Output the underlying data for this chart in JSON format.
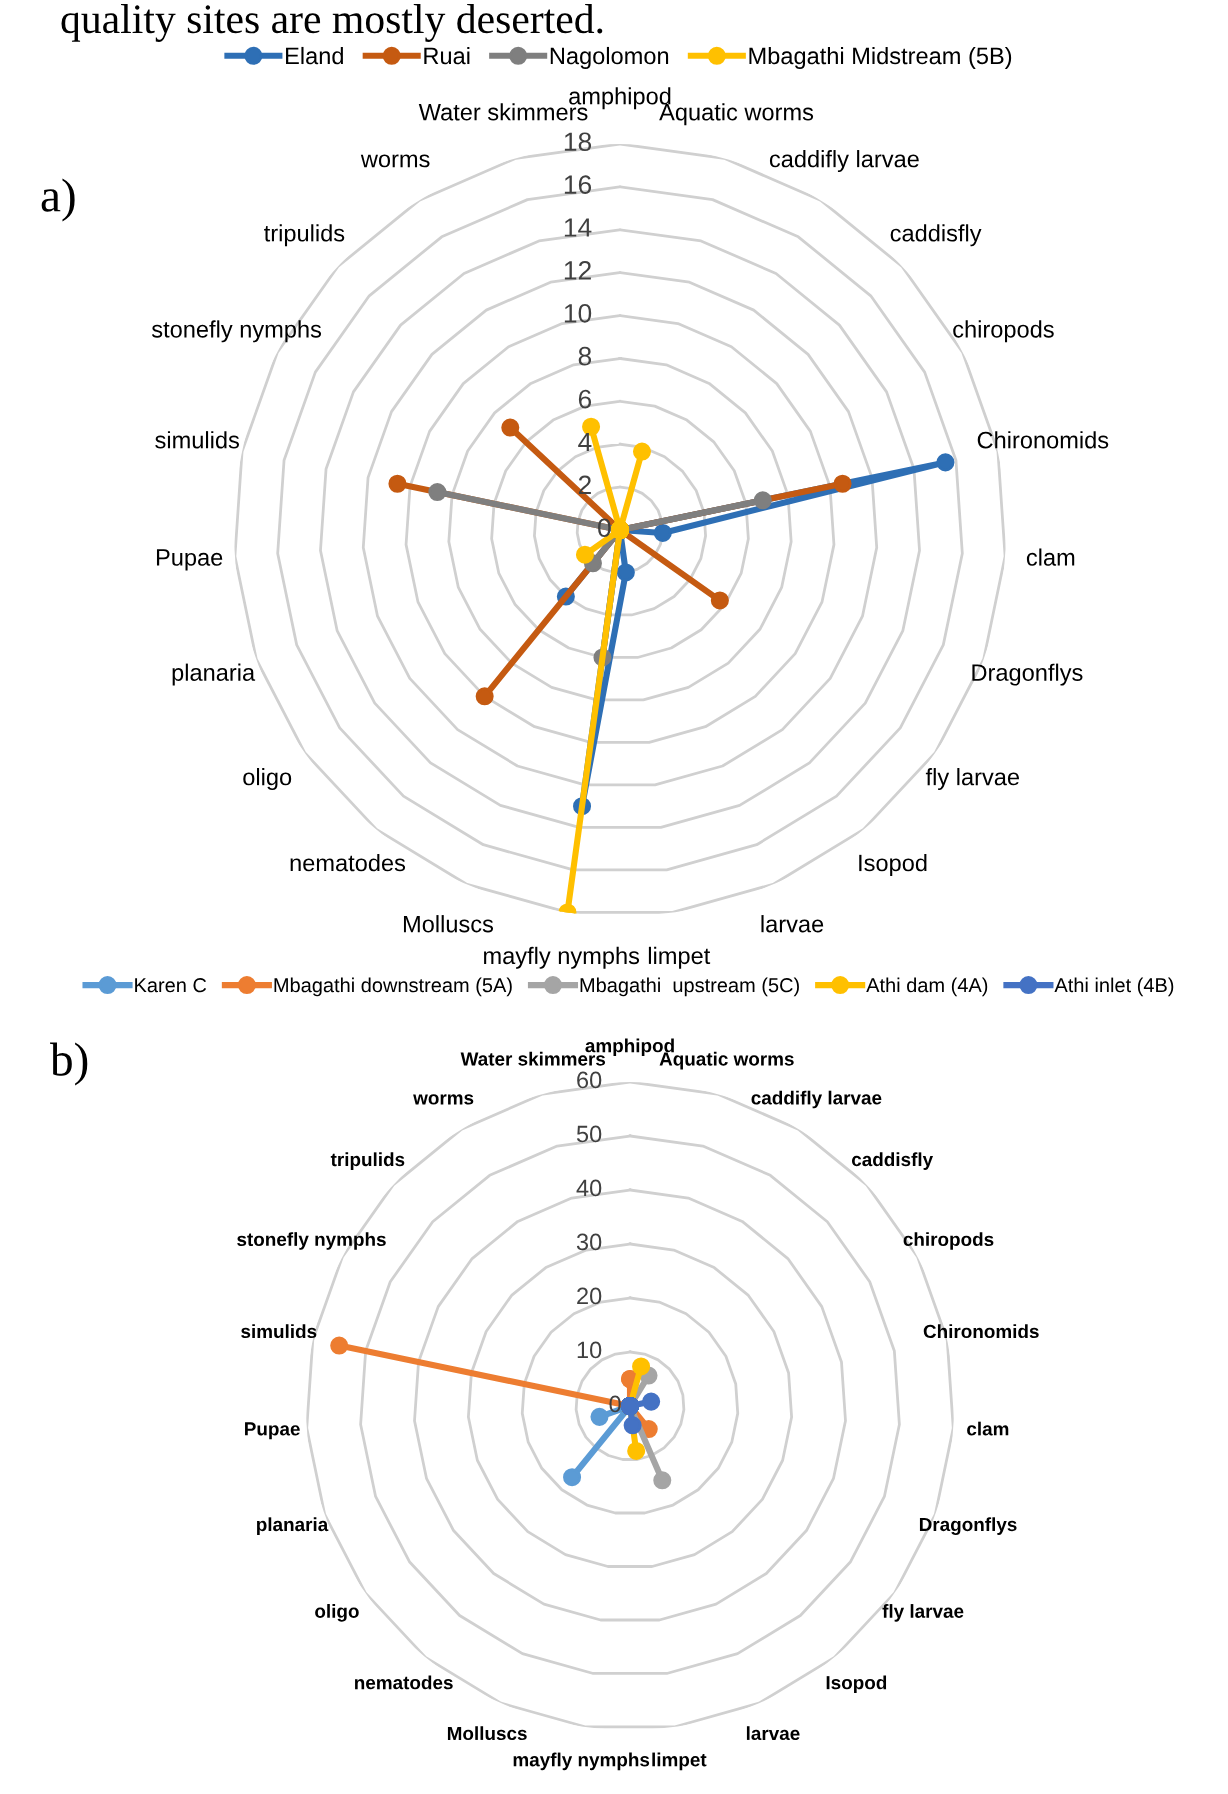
{
  "chart_data": [
    {
      "type": "radar",
      "title": "a)",
      "annotations": [
        "quality sites are mostly deserted."
      ],
      "categories": [
        "amphipod",
        "Aquatic worms",
        "caddifly larvae",
        "caddisfly",
        "chiropods",
        "Chironomids",
        "clam",
        "Dragonflys",
        "fly larvae",
        "Isopod",
        "larvae",
        "limpet",
        "mayfly nymphs",
        "Molluscs",
        "nematodes",
        "oligo",
        "planaria",
        "Pupae",
        "simulids",
        "stonefly nymphs",
        "tripulids",
        "worms",
        "Water skimmers"
      ],
      "series": [
        {
          "name": "Eland",
          "color": "#2e6fb5",
          "values": [
            0,
            0,
            0,
            0,
            0,
            15.5,
            2,
            0,
            0,
            0,
            0,
            2,
            13,
            0,
            4,
            0,
            0,
            0,
            0,
            0,
            0,
            0,
            0
          ]
        },
        {
          "name": "Ruai",
          "color": "#c55a11",
          "values": [
            0,
            0,
            0,
            0,
            0,
            10.6,
            0,
            0,
            5.7,
            0,
            0,
            0,
            0,
            0,
            10,
            0,
            0,
            0,
            10.6,
            0,
            7,
            0,
            0
          ]
        },
        {
          "name": "Nagolomon",
          "color": "#7f7f7f",
          "values": [
            0,
            0,
            0,
            0,
            0,
            6.8,
            0,
            0,
            0,
            0,
            0,
            0,
            6,
            0,
            2,
            0,
            0,
            0,
            8.7,
            0,
            0,
            0,
            0
          ]
        },
        {
          "name": "Mbagathi Midstream (5B)",
          "color": "#ffc000",
          "values": [
            0,
            3.8,
            0,
            0,
            0,
            0,
            0,
            0,
            0,
            0,
            0,
            0,
            18,
            0,
            0,
            2,
            0,
            0,
            0,
            0,
            0,
            0,
            5
          ]
        }
      ],
      "ylim": [
        0,
        18
      ],
      "yticks": [
        0,
        2,
        4,
        6,
        8,
        10,
        12,
        14,
        16,
        18
      ],
      "grid": true,
      "legend": "top",
      "marker": "circle",
      "line_style": "solid"
    },
    {
      "type": "radar",
      "title": "b)",
      "categories": [
        "amphipod",
        "Aquatic worms",
        "caddifly larvae",
        "caddisfly",
        "chiropods",
        "Chironomids",
        "clam",
        "Dragonflys",
        "fly larvae",
        "Isopod",
        "larvae",
        "limpet",
        "mayfly nymphs",
        "Molluscs",
        "nematodes",
        "oligo",
        "planaria",
        "Pupae",
        "simulids",
        "stonefly nymphs",
        "tripulids",
        "worms",
        "Water skimmers"
      ],
      "series": [
        {
          "name": "Karen C",
          "color": "#5b9bd5",
          "values": [
            0,
            0,
            0,
            0,
            0,
            0,
            0,
            0,
            0,
            0,
            0,
            0,
            0,
            0,
            17,
            0,
            6,
            0,
            0,
            0,
            0,
            0,
            0
          ]
        },
        {
          "name": "Mbagathi downstream (5A)",
          "color": "#ed7d31",
          "values": [
            5,
            0,
            0,
            0,
            0,
            0,
            0,
            0,
            0,
            5.5,
            0,
            0,
            0,
            0,
            0,
            0,
            0,
            0,
            55,
            0,
            0,
            0,
            0
          ]
        },
        {
          "name": "Mbagathi  upstream (5C)",
          "color": "#a5a5a5",
          "values": [
            0,
            0,
            6.6,
            0,
            0,
            0,
            0,
            0,
            0,
            0,
            15,
            0,
            0,
            0,
            0,
            0,
            0,
            0,
            0,
            0,
            0,
            0,
            0
          ]
        },
        {
          "name": "Athi dam (4A)",
          "color": "#ffc000",
          "values": [
            0,
            7.6,
            0,
            0,
            0,
            0,
            0,
            0,
            0,
            0,
            0,
            8.4,
            0,
            0,
            0,
            0,
            0,
            0,
            0,
            0,
            0,
            0,
            0
          ]
        },
        {
          "name": "Athi inlet (4B)",
          "color": "#4472c4",
          "values": [
            0,
            0,
            0,
            0,
            0,
            4,
            0,
            0,
            0,
            0,
            0,
            3.6,
            0,
            0,
            0,
            0,
            0,
            0,
            0,
            0,
            0,
            0,
            0
          ]
        }
      ],
      "ylim": [
        0,
        60
      ],
      "yticks": [
        0,
        10,
        20,
        30,
        40,
        50,
        60
      ],
      "grid": true,
      "legend": "top",
      "marker": "circle",
      "line_style": "solid"
    }
  ]
}
